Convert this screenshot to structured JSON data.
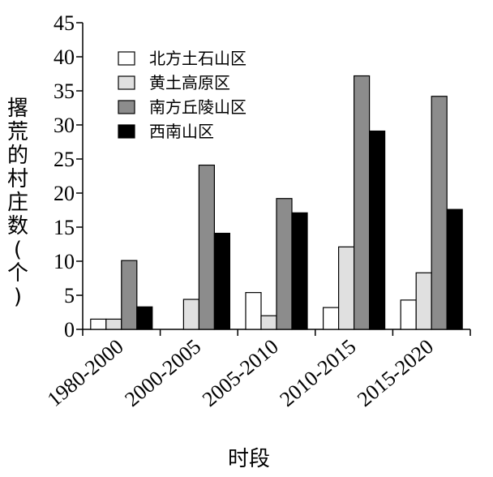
{
  "chart_data": {
    "type": "bar",
    "categories": [
      "1980-2000",
      "2000-2005",
      "2005-2010",
      "2010-2015",
      "2015-2020"
    ],
    "series": [
      {
        "name": "北方土石山区",
        "color": "#ffffff",
        "values": [
          1.5,
          0,
          5.4,
          3.2,
          4.3
        ]
      },
      {
        "name": "黄土高原区",
        "color": "#e0e0e0",
        "values": [
          1.5,
          4.4,
          2.0,
          12.1,
          8.3
        ]
      },
      {
        "name": "南方丘陵山区",
        "color": "#8c8c8c",
        "values": [
          10.1,
          24.1,
          19.2,
          37.2,
          34.2
        ]
      },
      {
        "name": "西南山区",
        "color": "#000000",
        "values": [
          3.3,
          14.1,
          17.1,
          29.1,
          17.6
        ]
      }
    ],
    "xlabel": "时段",
    "ylabel_chars": [
      "撂",
      "荒",
      "的",
      "村",
      "庄",
      "数",
      "(",
      "个",
      ")"
    ],
    "ylim": [
      0,
      45
    ],
    "yticks": [
      "0",
      "5",
      "10",
      "15",
      "20",
      "25",
      "30",
      "35",
      "40",
      "45"
    ],
    "grid": false,
    "legend_position": "top-left"
  }
}
